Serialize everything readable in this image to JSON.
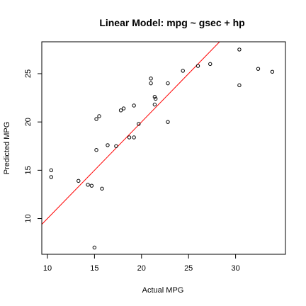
{
  "chart_data": {
    "type": "scatter",
    "title": "Linear Model:  mpg ~ gsec + hp",
    "xlabel": "Actual MPG",
    "ylabel": "Predicted MPG",
    "xlim": [
      9.4,
      35.3
    ],
    "ylim": [
      6.3,
      28.3
    ],
    "xticks": [
      10,
      15,
      20,
      25,
      30
    ],
    "yticks": [
      10,
      15,
      20,
      25
    ],
    "grid": false,
    "legend": "none",
    "colors": {
      "points": "#000000",
      "fit_line": "#ff0000"
    },
    "points": [
      {
        "x": 10.4,
        "y": 15.0
      },
      {
        "x": 10.4,
        "y": 14.3
      },
      {
        "x": 13.3,
        "y": 13.9
      },
      {
        "x": 14.3,
        "y": 13.5
      },
      {
        "x": 14.7,
        "y": 13.4
      },
      {
        "x": 15.0,
        "y": 7.0
      },
      {
        "x": 15.2,
        "y": 17.1
      },
      {
        "x": 15.2,
        "y": 20.3
      },
      {
        "x": 15.5,
        "y": 20.6
      },
      {
        "x": 15.8,
        "y": 13.1
      },
      {
        "x": 16.4,
        "y": 17.6
      },
      {
        "x": 17.3,
        "y": 17.5
      },
      {
        "x": 17.8,
        "y": 21.2
      },
      {
        "x": 18.1,
        "y": 21.4
      },
      {
        "x": 18.7,
        "y": 18.4
      },
      {
        "x": 19.2,
        "y": 18.4
      },
      {
        "x": 19.2,
        "y": 21.7
      },
      {
        "x": 19.7,
        "y": 19.8
      },
      {
        "x": 21.0,
        "y": 24.5
      },
      {
        "x": 21.0,
        "y": 24.0
      },
      {
        "x": 21.4,
        "y": 22.6
      },
      {
        "x": 21.4,
        "y": 21.8
      },
      {
        "x": 21.5,
        "y": 22.4
      },
      {
        "x": 22.8,
        "y": 24.0
      },
      {
        "x": 22.8,
        "y": 20.0
      },
      {
        "x": 24.4,
        "y": 25.3
      },
      {
        "x": 26.0,
        "y": 25.8
      },
      {
        "x": 27.3,
        "y": 26.0
      },
      {
        "x": 30.4,
        "y": 27.5
      },
      {
        "x": 30.4,
        "y": 23.8
      },
      {
        "x": 32.4,
        "y": 25.5
      },
      {
        "x": 33.9,
        "y": 25.2
      }
    ],
    "fit_line": {
      "intercept": 0,
      "slope": 1
    }
  }
}
